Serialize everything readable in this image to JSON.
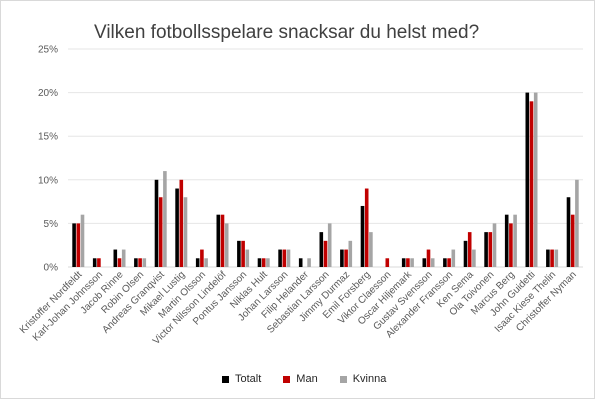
{
  "chart_data": {
    "type": "bar",
    "title": "Vilken fotbollsspelare snacksar du helst med?",
    "categories": [
      "Kristoffer Nordfeldt",
      "Karl-Johan Johnsson",
      "Jacob Rinne",
      "Robin Olsen",
      "Andreas Granqvist",
      "Mikael Lustig",
      "Martin Olsson",
      "Victor Nilsson Lindelöf",
      "Pontus Jansson",
      "Niklas Hult",
      "Johan Larsson",
      "Filip Helander",
      "Sebastian Larsson",
      "Jimmy Durmaz",
      "Emil Forsberg",
      "Viktor Claesson",
      "Oscar Hiljemark",
      "Gustav Svensson",
      "Alexander Fransson",
      "Ken Sema",
      "Ola Toivonen",
      "Marcus Berg",
      "John Guidetti",
      "Isaac Kiese Thelin",
      "Christoffer Nyman"
    ],
    "series": [
      {
        "name": "Totalt",
        "color": "#000000",
        "values": [
          5,
          1,
          2,
          1,
          10,
          9,
          1,
          6,
          3,
          1,
          2,
          1,
          4,
          2,
          7,
          0,
          1,
          1,
          1,
          3,
          4,
          6,
          20,
          2,
          8
        ]
      },
      {
        "name": "Man",
        "color": "#c00000",
        "values": [
          5,
          1,
          1,
          1,
          8,
          10,
          2,
          6,
          3,
          1,
          2,
          0,
          3,
          2,
          9,
          1,
          1,
          2,
          1,
          4,
          4,
          5,
          19,
          2,
          6
        ]
      },
      {
        "name": "Kvinna",
        "color": "#a5a5a5",
        "values": [
          6,
          0,
          2,
          1,
          11,
          8,
          1,
          5,
          2,
          1,
          2,
          1,
          5,
          3,
          4,
          0,
          1,
          1,
          2,
          2,
          5,
          6,
          20,
          2,
          10
        ]
      }
    ],
    "ylim": [
      0,
      25
    ],
    "yticks": [
      "0%",
      "5%",
      "10%",
      "15%",
      "20%",
      "25%"
    ],
    "legend_position": "bottom",
    "grid": true
  }
}
